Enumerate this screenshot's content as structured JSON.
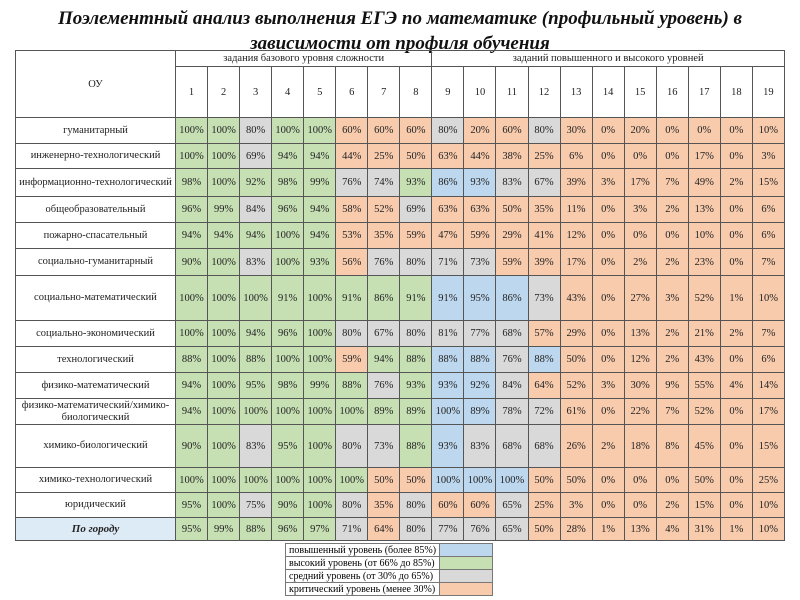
{
  "title": "Поэлементный анализ выполнения ЕГЭ по математике (профильный уровень) в зависимости от профиля обучения",
  "header": {
    "ou_label": "ОУ",
    "basic_group": "задания базового уровня сложности",
    "advanced_group": "заданий повышенного и высокого уровней",
    "task_numbers": [
      "1",
      "2",
      "3",
      "4",
      "5",
      "6",
      "7",
      "8",
      "9",
      "10",
      "11",
      "12",
      "13",
      "14",
      "15",
      "16",
      "17",
      "18",
      "19"
    ]
  },
  "level_colors": {
    "B": "#bdd7ee",
    "G": "#c6e0b4",
    "S": "#d9d9d9",
    "O": "#f8cbad"
  },
  "rows": [
    {
      "name": "гуманитарный",
      "values": [
        "100%",
        "100%",
        "80%",
        "100%",
        "100%",
        "60%",
        "60%",
        "60%",
        "80%",
        "20%",
        "60%",
        "80%",
        "30%",
        "0%",
        "20%",
        "0%",
        "0%",
        "0%",
        "10%"
      ],
      "levels": "GGSGGOOOSOOSOOOOOOO"
    },
    {
      "name": "инженерно-технологический",
      "values": [
        "100%",
        "100%",
        "69%",
        "94%",
        "94%",
        "44%",
        "25%",
        "50%",
        "63%",
        "44%",
        "38%",
        "25%",
        "6%",
        "0%",
        "0%",
        "0%",
        "17%",
        "0%",
        "3%"
      ],
      "levels": "GGSGGOOOOOOOOOOOOOO"
    },
    {
      "name": "информационно-технологический",
      "values": [
        "98%",
        "100%",
        "92%",
        "98%",
        "99%",
        "76%",
        "74%",
        "93%",
        "86%",
        "93%",
        "83%",
        "67%",
        "39%",
        "3%",
        "17%",
        "7%",
        "49%",
        "2%",
        "15%"
      ],
      "levels": "GGGGGSSGBBSSOOOOOOO"
    },
    {
      "name": "общеобразовательный",
      "values": [
        "96%",
        "99%",
        "84%",
        "96%",
        "94%",
        "58%",
        "52%",
        "69%",
        "63%",
        "63%",
        "50%",
        "35%",
        "11%",
        "0%",
        "3%",
        "2%",
        "13%",
        "0%",
        "6%"
      ],
      "levels": "GGSGGOOSOOOOOOOOOOO"
    },
    {
      "name": "пожарно-спасательный",
      "values": [
        "94%",
        "94%",
        "94%",
        "100%",
        "94%",
        "53%",
        "35%",
        "59%",
        "47%",
        "59%",
        "29%",
        "41%",
        "12%",
        "0%",
        "0%",
        "0%",
        "10%",
        "0%",
        "6%"
      ],
      "levels": "GGGGGOOOOOOOOOOOOOO"
    },
    {
      "name": "социально-гуманитарный",
      "values": [
        "90%",
        "100%",
        "83%",
        "100%",
        "93%",
        "56%",
        "76%",
        "80%",
        "71%",
        "73%",
        "59%",
        "39%",
        "17%",
        "0%",
        "2%",
        "2%",
        "23%",
        "0%",
        "7%"
      ],
      "levels": "GGSGGOSSSSOOOOOOOOO"
    },
    {
      "name": "социально-математический",
      "values": [
        "100%",
        "100%",
        "100%",
        "91%",
        "100%",
        "91%",
        "86%",
        "91%",
        "91%",
        "95%",
        "86%",
        "73%",
        "43%",
        "0%",
        "27%",
        "3%",
        "52%",
        "1%",
        "10%"
      ],
      "levels": "GGGGGGGGBBBSOOOOOOO",
      "tall": true
    },
    {
      "name": "социально-экономический",
      "values": [
        "100%",
        "100%",
        "94%",
        "96%",
        "100%",
        "80%",
        "67%",
        "80%",
        "81%",
        "77%",
        "68%",
        "57%",
        "29%",
        "0%",
        "13%",
        "2%",
        "21%",
        "2%",
        "7%"
      ],
      "levels": "GGGGGSSSSSSOOOOOOOO"
    },
    {
      "name": "технологический",
      "values": [
        "88%",
        "100%",
        "88%",
        "100%",
        "100%",
        "59%",
        "94%",
        "88%",
        "88%",
        "88%",
        "76%",
        "88%",
        "50%",
        "0%",
        "12%",
        "2%",
        "43%",
        "0%",
        "6%"
      ],
      "levels": "GGGGGOGGBBSBOOOOOOO"
    },
    {
      "name": "физико-математический",
      "values": [
        "94%",
        "100%",
        "95%",
        "98%",
        "99%",
        "88%",
        "76%",
        "93%",
        "93%",
        "92%",
        "84%",
        "64%",
        "52%",
        "3%",
        "30%",
        "9%",
        "55%",
        "4%",
        "14%"
      ],
      "levels": "GGGGGGSGBBSOOOOOOOO"
    },
    {
      "name": "физико-математический/химико-биологический",
      "values": [
        "94%",
        "100%",
        "100%",
        "100%",
        "100%",
        "100%",
        "89%",
        "89%",
        "100%",
        "89%",
        "78%",
        "72%",
        "61%",
        "0%",
        "22%",
        "7%",
        "52%",
        "0%",
        "17%"
      ],
      "levels": "GGGGGGGGBBSSOOOOOOO"
    },
    {
      "name": "химико-биологический",
      "values": [
        "90%",
        "100%",
        "83%",
        "95%",
        "100%",
        "80%",
        "73%",
        "88%",
        "93%",
        "83%",
        "68%",
        "68%",
        "26%",
        "2%",
        "18%",
        "8%",
        "45%",
        "0%",
        "15%"
      ],
      "levels": "GGSGGSSGBSSSOOOOOOO",
      "tall": true
    },
    {
      "name": "химико-технологический",
      "values": [
        "100%",
        "100%",
        "100%",
        "100%",
        "100%",
        "100%",
        "50%",
        "50%",
        "100%",
        "100%",
        "100%",
        "50%",
        "50%",
        "0%",
        "0%",
        "0%",
        "50%",
        "0%",
        "25%"
      ],
      "levels": "GGGGGGOOBBBOOOOOOOO"
    },
    {
      "name": "юридический",
      "values": [
        "95%",
        "100%",
        "75%",
        "90%",
        "100%",
        "80%",
        "35%",
        "80%",
        "60%",
        "60%",
        "65%",
        "25%",
        "3%",
        "0%",
        "0%",
        "2%",
        "15%",
        "0%",
        "10%"
      ],
      "levels": "GGSGGSOSOOSOOOOOOOO"
    },
    {
      "name": "По городу",
      "values": [
        "95%",
        "99%",
        "88%",
        "96%",
        "97%",
        "71%",
        "64%",
        "80%",
        "77%",
        "76%",
        "65%",
        "50%",
        "28%",
        "1%",
        "13%",
        "4%",
        "31%",
        "1%",
        "10%"
      ],
      "levels": "GGGGGSOSSSSOOOOOOOO",
      "total": true
    }
  ],
  "legend": [
    {
      "label": "повышенный уровень (более 85%)",
      "level": "B"
    },
    {
      "label": "высокий уровень (от 66% до 85%)",
      "level": "G"
    },
    {
      "label": "средний уровень (от 30% до 65%)",
      "level": "S"
    },
    {
      "label": "критический уровень (менее 30%)",
      "level": "O"
    }
  ]
}
